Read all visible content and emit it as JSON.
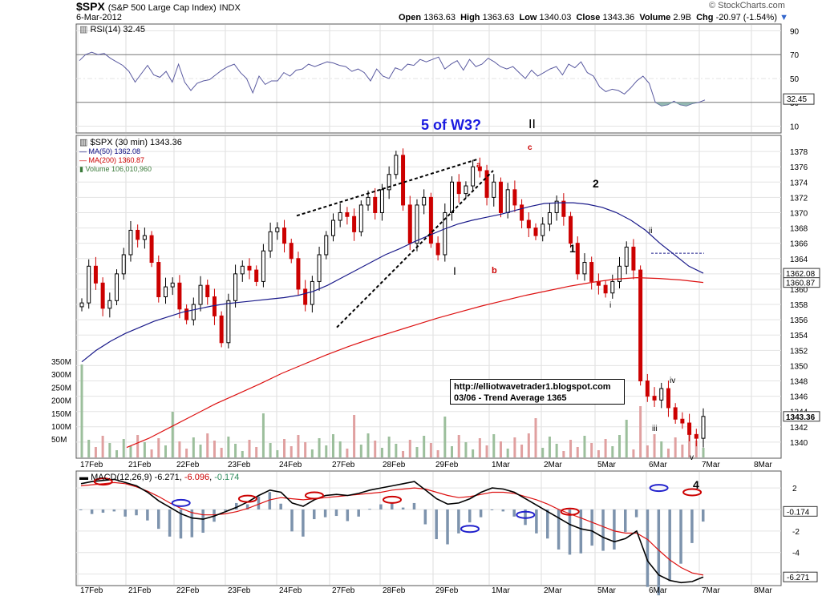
{
  "header": {
    "symbol": "$SPX",
    "name": "(S&P 500 Large Cap Index)",
    "exchange": "INDX",
    "date": "6-Mar-2012",
    "open_label": "Open",
    "open": "1363.63",
    "high_label": "High",
    "high": "1363.63",
    "low_label": "Low",
    "low": "1340.03",
    "close_label": "Close",
    "close": "1343.36",
    "volume_label": "Volume",
    "volume": "2.9B",
    "chg_label": "Chg",
    "chg": "-20.97 (-1.54%)",
    "brand": "© StockCharts.com"
  },
  "chart_data": {
    "type": "candlestick",
    "x_labels": [
      "17Feb",
      "21Feb",
      "22Feb",
      "23Feb",
      "24Feb",
      "27Feb",
      "28Feb",
      "29Feb",
      "1Mar",
      "2Mar",
      "5Mar",
      "6Mar",
      "7Mar",
      "8Mar"
    ],
    "rsi": {
      "legend": "RSI(14) 32.45",
      "ticks": [
        90,
        70,
        50,
        30,
        10
      ],
      "last_value": "32.45",
      "values": [
        65,
        70,
        72,
        70,
        71,
        67,
        64,
        61,
        56,
        47,
        54,
        61,
        53,
        51,
        56,
        47,
        62,
        47,
        40,
        46,
        48,
        49,
        53,
        57,
        60,
        62,
        55,
        50,
        38,
        52,
        45,
        48,
        48,
        55,
        52,
        57,
        58,
        62,
        60,
        62,
        64,
        63,
        61,
        60,
        56,
        58,
        55,
        48,
        58,
        52,
        50,
        59,
        57,
        62,
        61,
        66,
        64,
        66,
        68,
        58,
        62,
        65,
        57,
        66,
        60,
        62,
        67,
        64,
        60,
        58,
        60,
        55,
        50,
        57,
        52,
        55,
        58,
        60,
        53,
        62,
        59,
        64,
        55,
        52,
        43,
        39,
        41,
        40,
        37,
        42,
        48,
        52,
        46,
        30,
        27,
        28,
        31,
        28,
        27,
        29,
        30,
        32
      ]
    },
    "price": {
      "legend": "$SPX (30 min) 1343.36",
      "ma50_label": "MA(50) 1362.08",
      "ma200_label": "MA(200) 1360.87",
      "volume_label": "Volume 106,010,960",
      "ylim": [
        1338,
        1380
      ],
      "ticks": [
        1340,
        1342,
        1344,
        1346,
        1348,
        1350,
        1352,
        1354,
        1356,
        1358,
        1360,
        1362,
        1364,
        1366,
        1368,
        1370,
        1372,
        1374,
        1376,
        1378
      ],
      "last_close": "1343.36",
      "ma50_last": "1362.08",
      "ma200_last": "1360.87",
      "volume_ticks": [
        "350M",
        "300M",
        "250M",
        "200M",
        "150M",
        "100M",
        "50M"
      ],
      "closes": [
        1358.2,
        1363.0,
        1360.8,
        1357.5,
        1358.5,
        1362.0,
        1364.5,
        1367.7,
        1366.5,
        1367.0,
        1363.5,
        1359.0,
        1360.3,
        1360.8,
        1357.4,
        1356.0,
        1358.0,
        1360.5,
        1359.0,
        1356.5,
        1353.0,
        1358.5,
        1362.0,
        1363.0,
        1362.5,
        1361.0,
        1365.0,
        1367.5,
        1368.0,
        1366.0,
        1364.0,
        1360.0,
        1358.0,
        1361.0,
        1364.5,
        1367.0,
        1369.0,
        1370.0,
        1369.5,
        1367.5,
        1371.0,
        1372.0,
        1370.0,
        1373.0,
        1375.0,
        1377.5,
        1371.0,
        1366.0,
        1371.0,
        1372.0,
        1366.0,
        1364.5,
        1370.0,
        1374.0,
        1372.5,
        1373.5,
        1376.0,
        1375.5,
        1372.0,
        1374.0,
        1370.0,
        1373.0,
        1371.0,
        1369.0,
        1368.0,
        1367.0,
        1368.5,
        1370.0,
        1371.5,
        1369.5,
        1366.0,
        1362.0,
        1363.5,
        1361.0,
        1360.5,
        1359.5,
        1361.0,
        1363.0,
        1365.5,
        1362.5,
        1348.0,
        1346.0,
        1345.5,
        1347.0,
        1344.5,
        1343.0,
        1342.5,
        1341.0,
        1340.5,
        1343.36
      ],
      "ma50": [
        1350.5,
        1352.0,
        1353.2,
        1354.2,
        1355.0,
        1355.8,
        1356.4,
        1357.0,
        1357.4,
        1357.8,
        1358.1,
        1358.3,
        1358.5,
        1358.7,
        1358.9,
        1359.2,
        1359.7,
        1360.5,
        1361.5,
        1362.5,
        1363.5,
        1364.5,
        1365.3,
        1366.2,
        1367.0,
        1367.8,
        1368.5,
        1369.0,
        1369.4,
        1369.8,
        1370.3,
        1370.8,
        1371.2,
        1371.3,
        1371.3,
        1371.1,
        1370.7,
        1370.0,
        1369.0,
        1367.7,
        1366.0,
        1364.5,
        1363.0,
        1362.08
      ],
      "ma200": [
        1339.3,
        1340.5,
        1342.0,
        1343.5,
        1345.0,
        1346.3,
        1347.6,
        1349.0,
        1350.2,
        1351.4,
        1352.5,
        1353.5,
        1354.4,
        1355.3,
        1356.2,
        1357.0,
        1357.8,
        1358.5,
        1359.2,
        1359.8,
        1360.4,
        1360.9,
        1361.3,
        1361.5,
        1361.4,
        1361.2,
        1360.87
      ],
      "annotations": {
        "title_wave": "5 of W3?",
        "wave_II": "II",
        "wave_I": "I",
        "wave_a": "a",
        "wave_b": "b",
        "wave_c": "c",
        "wave_1": "1",
        "wave_2": "2",
        "wave_i": "i",
        "wave_ii": "ii",
        "wave_iii": "iii",
        "wave_iv": "iv",
        "wave_v": "v",
        "wave_4": "4",
        "url": "http://elliotwavetrader1.blogspot.com",
        "trend_note": "03/06 - Trend Average 1365"
      }
    },
    "macd": {
      "legend_name": "MACD(12,26,9)",
      "legend_macd": "-6.271",
      "legend_signal": "-6.096",
      "legend_hist": "-0.174",
      "ticks": [
        2,
        0,
        -2,
        -4,
        -6
      ],
      "last_hist": "-0.174",
      "last_macd": "-6.271",
      "ylim": [
        -7,
        3.5
      ],
      "macd": [
        2.4,
        2.6,
        2.7,
        2.8,
        2.5,
        2.2,
        1.6,
        0.8,
        0.2,
        -0.4,
        -0.8,
        -0.9,
        -0.6,
        -0.2,
        0.2,
        0.7,
        1.3,
        1.8,
        1.6,
        0.6,
        0.3,
        0.9,
        1.3,
        1.4,
        1.3,
        1.5,
        1.8,
        2.0,
        2.2,
        2.4,
        2.6,
        1.8,
        1.0,
        0.5,
        0.6,
        1.0,
        1.6,
        2.0,
        1.9,
        1.6,
        1.0,
        0.4,
        -0.2,
        -0.8,
        -1.4,
        -1.8,
        -2.0,
        -2.6,
        -3.0,
        -2.7,
        -2.0,
        -4.8,
        -6.1,
        -6.6,
        -6.8,
        -6.7,
        -6.271
      ],
      "signal": [
        2.2,
        2.3,
        2.4,
        2.5,
        2.4,
        2.1,
        1.7,
        1.2,
        0.6,
        0.1,
        -0.3,
        -0.5,
        -0.5,
        -0.4,
        -0.2,
        0.1,
        0.5,
        0.9,
        1.1,
        1.0,
        0.9,
        1.0,
        1.1,
        1.2,
        1.3,
        1.4,
        1.5,
        1.6,
        1.8,
        1.9,
        2.0,
        1.9,
        1.6,
        1.3,
        1.1,
        1.2,
        1.4,
        1.6,
        1.6,
        1.5,
        1.2,
        0.9,
        0.5,
        0.0,
        -0.4,
        -0.8,
        -1.2,
        -1.6,
        -2.0,
        -2.2,
        -2.2,
        -2.8,
        -3.8,
        -4.7,
        -5.4,
        -5.9,
        -6.096
      ],
      "crossovers": [
        2.6,
        0.6,
        1.0,
        1.3,
        0.9,
        -1.8,
        -0.5,
        -0.2,
        2.0,
        1.6
      ]
    }
  }
}
